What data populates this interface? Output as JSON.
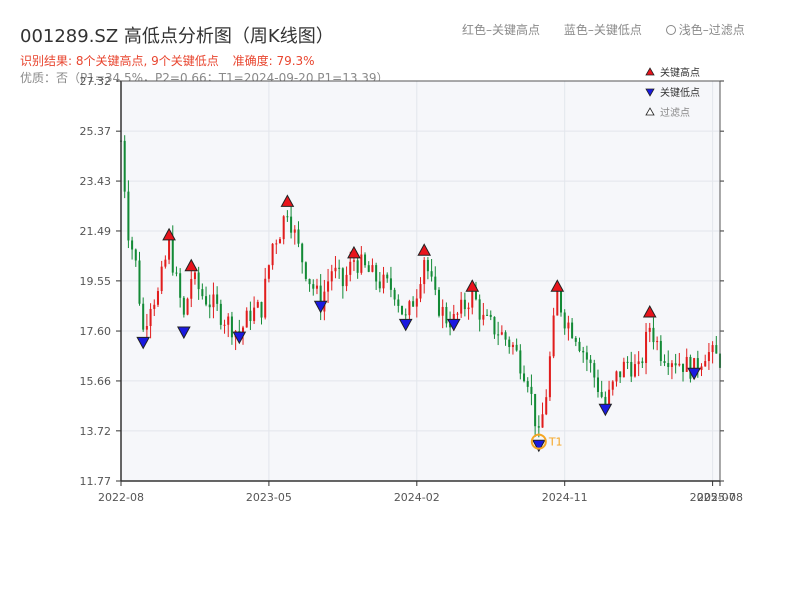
{
  "header": {
    "title": "001289.SZ 高低点分析图（周K线图）",
    "result_line": "识别结果: 8个关键高点, 9个关键低点",
    "accuracy_line": "准确度: 79.3%",
    "quality_line": "优质：否（P1=34.5%，P2=0.66；T1=2024-09-20 P1=13.39）"
  },
  "top_legend": {
    "red_label": "红色–关键高点",
    "blue_label": "蓝色–关键低点",
    "light_label": "浅色–过滤点"
  },
  "chart_data": {
    "type": "candlestick",
    "ylim": [
      11.77,
      27.32
    ],
    "yticks": [
      "27.32",
      "25.37",
      "23.43",
      "21.49",
      "19.55",
      "17.60",
      "15.66",
      "13.72",
      "11.77"
    ],
    "xticks": [
      {
        "label": "2022-08",
        "week": 0
      },
      {
        "label": "2023-05",
        "week": 40
      },
      {
        "label": "2024-02",
        "week": 80
      },
      {
        "label": "2024-11",
        "week": 120
      },
      {
        "label": "2025-07",
        "week": 160
      },
      {
        "label": "2025-08",
        "week": 162
      }
    ],
    "total_weeks": 162,
    "grid": true,
    "legend": {
      "position": "top-right",
      "items": [
        {
          "label": "关键高点",
          "color": "#e8141c",
          "shape": "up"
        },
        {
          "label": "关键低点",
          "color": "#1a1ae0",
          "shape": "down"
        },
        {
          "label": "过滤点",
          "color": "#ffffff",
          "shape": "up-hollow"
        }
      ]
    },
    "key_highs": [
      {
        "week": 13,
        "price": 21.3
      },
      {
        "week": 19,
        "price": 20.1
      },
      {
        "week": 45,
        "price": 22.6
      },
      {
        "week": 63,
        "price": 20.6
      },
      {
        "week": 82,
        "price": 20.7
      },
      {
        "week": 95,
        "price": 19.3
      },
      {
        "week": 118,
        "price": 19.3
      },
      {
        "week": 143,
        "price": 18.3
      }
    ],
    "key_lows": [
      {
        "week": 6,
        "price": 17.2
      },
      {
        "week": 17,
        "price": 17.6
      },
      {
        "week": 32,
        "price": 17.4
      },
      {
        "week": 54,
        "price": 18.6
      },
      {
        "week": 77,
        "price": 17.9
      },
      {
        "week": 90,
        "price": 17.9
      },
      {
        "week": 113,
        "price": 13.2
      },
      {
        "week": 131,
        "price": 14.6
      },
      {
        "week": 155,
        "price": 16.0
      }
    ],
    "annotation": {
      "label": "T1",
      "week": 113,
      "price": 13.3,
      "color": "#f5a623"
    },
    "price_path": [
      [
        0,
        25.0
      ],
      [
        2,
        21.5
      ],
      [
        4,
        20.2
      ],
      [
        6,
        17.6
      ],
      [
        8,
        18.8
      ],
      [
        10,
        19.0
      ],
      [
        13,
        21.0
      ],
      [
        15,
        19.5
      ],
      [
        17,
        18.1
      ],
      [
        19,
        19.7
      ],
      [
        22,
        19.0
      ],
      [
        25,
        18.6
      ],
      [
        28,
        18.1
      ],
      [
        32,
        17.5
      ],
      [
        35,
        18.3
      ],
      [
        38,
        18.5
      ],
      [
        41,
        21.0
      ],
      [
        43,
        21.5
      ],
      [
        45,
        22.4
      ],
      [
        48,
        20.8
      ],
      [
        51,
        19.6
      ],
      [
        54,
        18.7
      ],
      [
        57,
        20.0
      ],
      [
        60,
        19.4
      ],
      [
        63,
        20.4
      ],
      [
        66,
        20.0
      ],
      [
        70,
        19.5
      ],
      [
        74,
        19.2
      ],
      [
        77,
        18.0
      ],
      [
        80,
        19.2
      ],
      [
        82,
        20.5
      ],
      [
        85,
        18.8
      ],
      [
        88,
        18.1
      ],
      [
        90,
        18.0
      ],
      [
        93,
        18.6
      ],
      [
        95,
        19.1
      ],
      [
        98,
        18.0
      ],
      [
        102,
        17.6
      ],
      [
        106,
        17.0
      ],
      [
        110,
        15.8
      ],
      [
        113,
        13.4
      ],
      [
        115,
        15.2
      ],
      [
        117,
        17.8
      ],
      [
        118,
        19.0
      ],
      [
        120,
        18.1
      ],
      [
        123,
        17.5
      ],
      [
        127,
        16.2
      ],
      [
        131,
        14.7
      ],
      [
        134,
        15.8
      ],
      [
        137,
        16.4
      ],
      [
        140,
        16.0
      ],
      [
        143,
        17.8
      ],
      [
        146,
        16.8
      ],
      [
        150,
        16.5
      ],
      [
        155,
        16.1
      ],
      [
        158,
        16.8
      ],
      [
        162,
        16.5
      ]
    ]
  }
}
